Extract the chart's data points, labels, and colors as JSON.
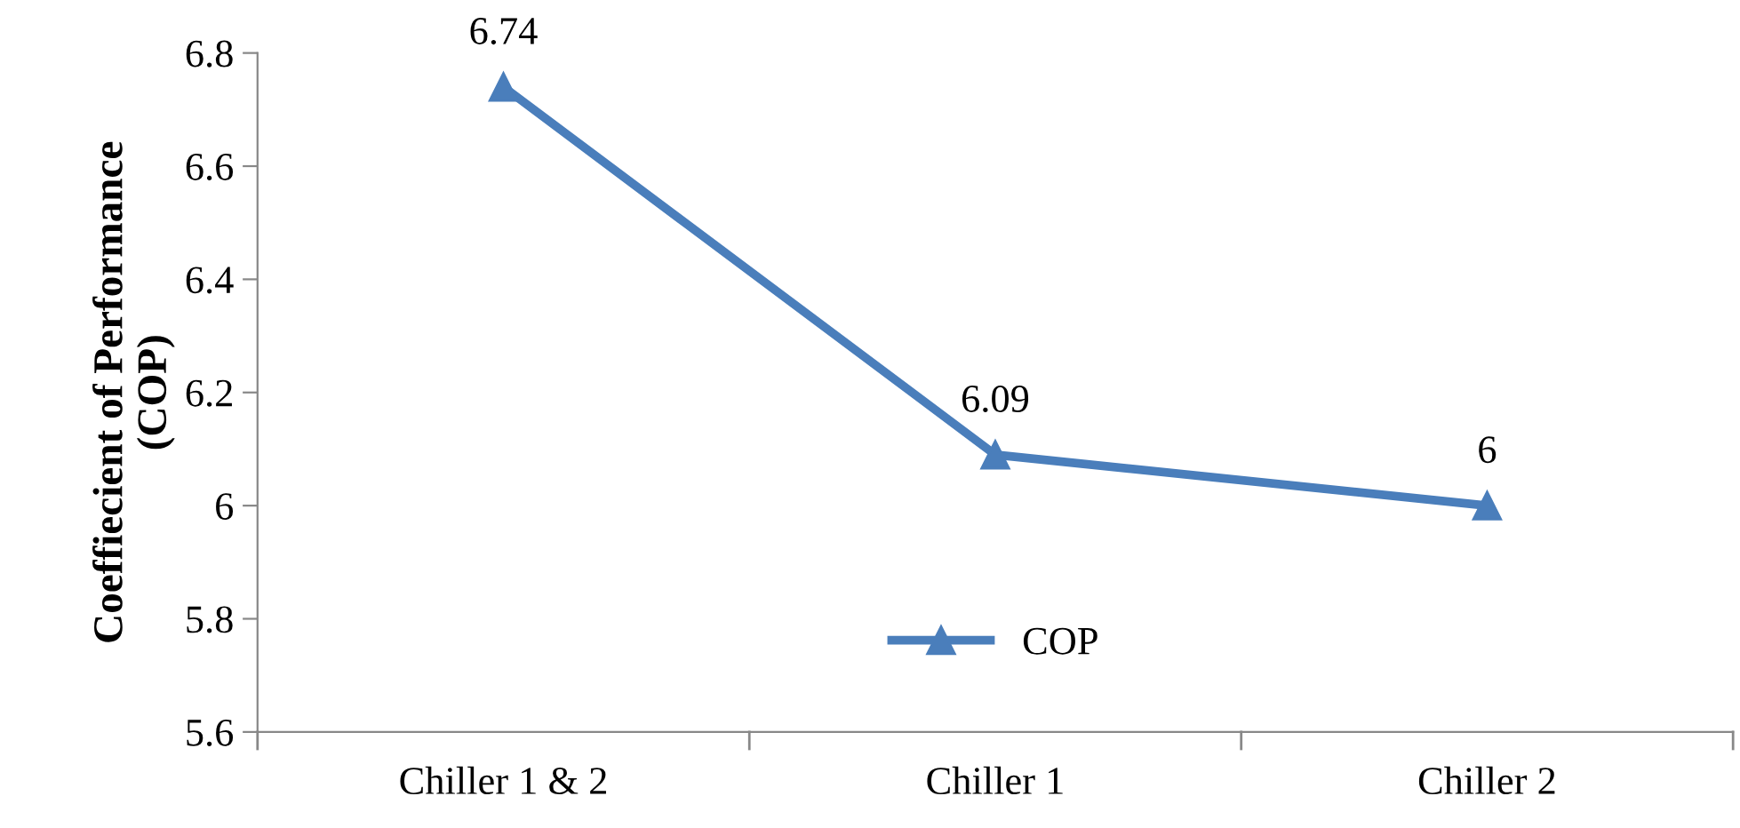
{
  "chart_data": {
    "type": "line",
    "ylabel": "Coeffiecient of Performance\n(COP)",
    "categories": [
      "Chiller 1 & 2",
      "Chiller 1",
      "Chiller 2"
    ],
    "series": [
      {
        "name": "COP",
        "color": "#4a7ebb",
        "values": [
          6.74,
          6.09,
          6
        ]
      }
    ],
    "ylim": [
      5.6,
      6.8
    ],
    "yticks": [
      5.6,
      5.8,
      6,
      6.2,
      6.4,
      6.6,
      6.8
    ],
    "data_labels": true,
    "legend": "bottom",
    "marker": "triangle",
    "line_style": "solid",
    "grid": false
  }
}
